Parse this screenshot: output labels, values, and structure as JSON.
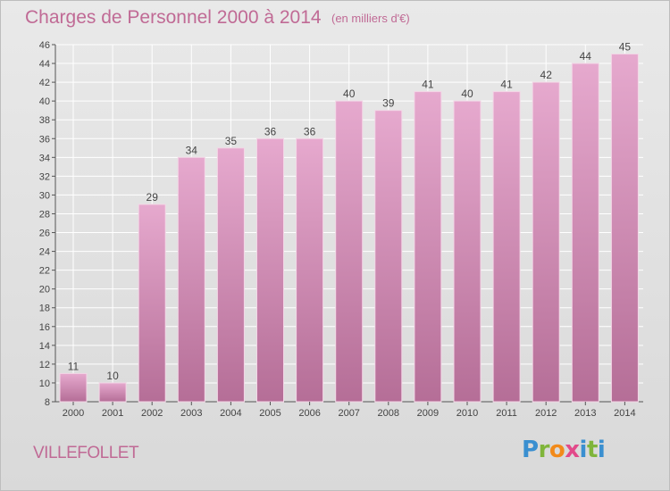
{
  "header": {
    "title": "Charges de Personnel 2000 à 2014",
    "subtitle": "(en milliers d'€)"
  },
  "footer": {
    "city": "VILLEFOLLET",
    "logo": {
      "letters": [
        "P",
        "r",
        "o",
        "x",
        "i",
        "t",
        "i"
      ],
      "colors": [
        "#3a8fd0",
        "#7fb53a",
        "#f28a1a",
        "#e24a8a",
        "#3a8fd0",
        "#7fb53a",
        "#3a8fd0"
      ]
    }
  },
  "chart_data": {
    "type": "bar",
    "title": "Charges de Personnel 2000 à 2014",
    "subtitle": "(en milliers d'€)",
    "categories": [
      "2000",
      "2001",
      "2002",
      "2003",
      "2004",
      "2005",
      "2006",
      "2007",
      "2008",
      "2009",
      "2010",
      "2011",
      "2012",
      "2013",
      "2014"
    ],
    "values": [
      11,
      10,
      29,
      34,
      35,
      36,
      36,
      40,
      39,
      41,
      40,
      41,
      42,
      44,
      45
    ],
    "ylim": [
      8,
      46
    ],
    "yticks": [
      8,
      10,
      12,
      14,
      16,
      18,
      20,
      22,
      24,
      26,
      28,
      30,
      32,
      34,
      36,
      38,
      40,
      42,
      44,
      46
    ],
    "grid": true,
    "bar_color": "#cc80ab"
  }
}
